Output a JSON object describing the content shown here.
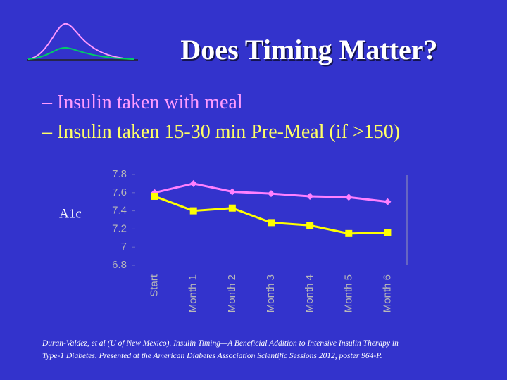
{
  "slide": {
    "title": "Does Timing Matter?",
    "bullets": [
      {
        "text": "– Insulin taken with meal",
        "color": "#ff9cff"
      },
      {
        "text": "– Insulin taken 15-30 min Pre-Meal (if >150)",
        "color": "#ffff66"
      }
    ],
    "citation": [
      "Duran-Valdez, et al (U of New Mexico).  Insulin Timing—A Beneficial Addition to Intensive Insulin Therapy in",
      "Type-1 Diabetes.  Presented at the American Diabetes Association Scientific Sessions 2012, poster 964-P."
    ]
  },
  "chart_data": {
    "type": "line",
    "ylabel": "A1c",
    "categories": [
      "Start",
      "Month 1",
      "Month 2",
      "Month 3",
      "Month 4",
      "Month 5",
      "Month 6"
    ],
    "series": [
      {
        "color": "#ff80ff",
        "marker": "diamond",
        "values": [
          7.6,
          7.7,
          7.61,
          7.59,
          7.56,
          7.55,
          7.5
        ]
      },
      {
        "color": "#ffff00",
        "marker": "square",
        "values": [
          7.56,
          7.4,
          7.43,
          7.27,
          7.24,
          7.15,
          7.16
        ]
      }
    ],
    "ylim": [
      6.8,
      7.8
    ],
    "yticks": [
      6.8,
      7,
      7.2,
      7.4,
      7.6,
      7.8
    ]
  }
}
